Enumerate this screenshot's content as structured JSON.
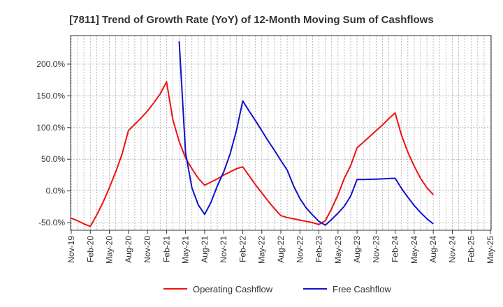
{
  "chart_data": {
    "type": "line",
    "title": "[7811]  Trend of Growth Rate (YoY) of 12-Month Moving Sum of Cashflows",
    "xlabel": "",
    "ylabel": "",
    "x_ticks": [
      "Nov-19",
      "Feb-20",
      "May-20",
      "Aug-20",
      "Nov-20",
      "Feb-21",
      "May-21",
      "Aug-21",
      "Nov-21",
      "Feb-22",
      "May-22",
      "Aug-22",
      "Nov-22",
      "Feb-23",
      "May-23",
      "Aug-23",
      "Nov-23",
      "Feb-24",
      "May-24",
      "Aug-24",
      "Nov-24",
      "Feb-25",
      "May-25"
    ],
    "y_ticks": [
      "-50.0%",
      "0.0%",
      "50.0%",
      "100.0%",
      "150.0%",
      "200.0%"
    ],
    "ylim": [
      -62,
      245
    ],
    "grid": true,
    "legend_position": "bottom",
    "series": [
      {
        "name": "Operating Cashflow",
        "color": "#ee1111",
        "x": [
          "Nov-19",
          "Dec-19",
          "Jan-20",
          "Feb-20",
          "Mar-20",
          "Apr-20",
          "May-20",
          "Jun-20",
          "Jul-20",
          "Aug-20",
          "Sep-20",
          "Oct-20",
          "Nov-20",
          "Dec-20",
          "Jan-21",
          "Feb-21",
          "Mar-21",
          "Apr-21",
          "May-21",
          "Jun-21",
          "Jul-21",
          "Aug-21",
          "Sep-21",
          "Oct-21",
          "Nov-21",
          "Dec-21",
          "Jan-22",
          "Feb-22",
          "Mar-22",
          "Apr-22",
          "May-22",
          "Jun-22",
          "Jul-22",
          "Aug-22",
          "Sep-22",
          "Oct-22",
          "Nov-22",
          "Dec-22",
          "Jan-23",
          "Feb-23",
          "Mar-23",
          "Apr-23",
          "May-23",
          "Jun-23",
          "Jul-23",
          "Aug-23",
          "Sep-23",
          "Oct-23",
          "Nov-23",
          "Dec-23",
          "Jan-24",
          "Feb-24",
          "Mar-24",
          "Apr-24",
          "May-24",
          "Jun-24",
          "Jul-24",
          "Aug-24"
        ],
        "values": [
          -43,
          -47,
          -52,
          -56,
          -38,
          -18,
          5,
          30,
          58,
          95,
          105,
          115,
          126,
          139,
          153,
          172,
          112,
          78,
          52,
          35,
          20,
          9,
          14,
          19,
          25,
          30,
          35,
          38,
          24,
          10,
          -3,
          -16,
          -28,
          -39,
          -42,
          -44,
          -46,
          -48,
          -50,
          -53,
          -47,
          -28,
          -6,
          20,
          40,
          68,
          77,
          86,
          95,
          104,
          114,
          123,
          88,
          61,
          39,
          20,
          5,
          -6
        ]
      },
      {
        "name": "Free Cashflow",
        "color": "#1111cc",
        "x": [
          "Apr-21",
          "May-21",
          "Jun-21",
          "Jul-21",
          "Aug-21",
          "Sep-21",
          "Oct-21",
          "Nov-21",
          "Dec-21",
          "Jan-22",
          "Feb-22",
          "Mar-22",
          "Apr-22",
          "May-22",
          "Jun-22",
          "Jul-22",
          "Aug-22",
          "Sep-22",
          "Oct-22",
          "Nov-22",
          "Dec-22",
          "Jan-23",
          "Feb-23",
          "Mar-23",
          "Apr-23",
          "May-23",
          "Jun-23",
          "Jul-23",
          "Aug-23",
          "Sep-23",
          "Oct-23",
          "Nov-23",
          "Dec-23",
          "Jan-24",
          "Feb-24",
          "Mar-24",
          "Apr-24",
          "May-24",
          "Jun-24",
          "Jul-24",
          "Aug-24"
        ],
        "values": [
          236,
          60,
          5,
          -22,
          -37,
          -18,
          8,
          30,
          58,
          95,
          142,
          126,
          111,
          95,
          79,
          64,
          48,
          33,
          8,
          -12,
          -27,
          -38,
          -48,
          -54,
          -45,
          -35,
          -24,
          -8,
          18,
          18,
          18.3,
          18.6,
          19,
          19.5,
          20,
          4,
          -10,
          -23,
          -34,
          -44,
          -52
        ]
      }
    ]
  }
}
